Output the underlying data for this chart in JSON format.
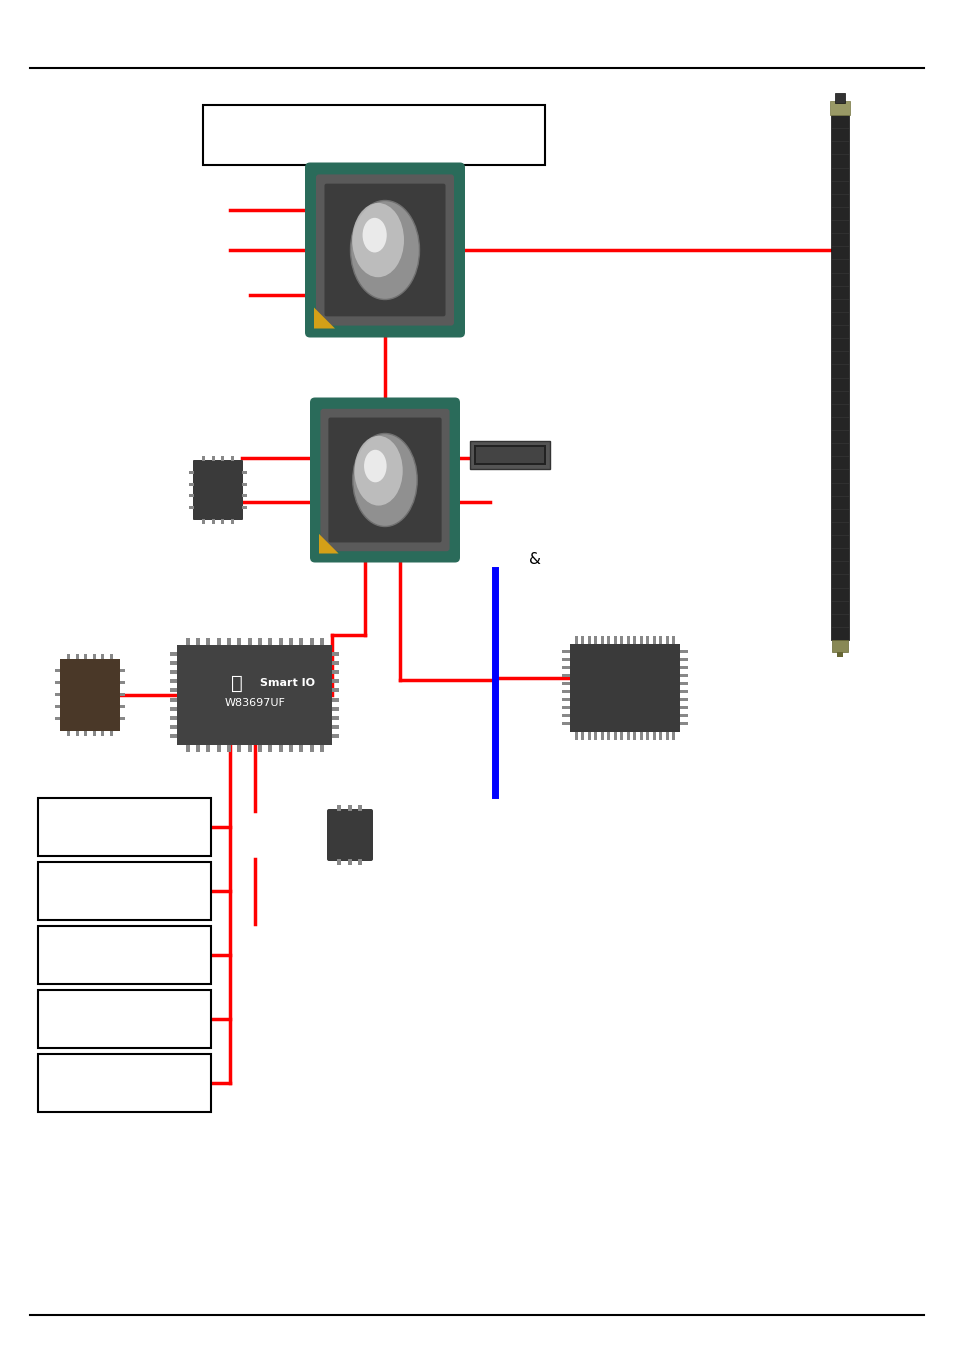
{
  "bg_color": "#ffffff",
  "line_color": "#000000",
  "red": "#ff0000",
  "blue": "#0000ff",
  "teal": "#2a6b5a",
  "dark_body": "#3c3c3c",
  "dark_chip": "#3a3a3a",
  "pin_color": "#888888",
  "lens_gray": "#a0a0a0",
  "lens_light": "#d8d8d8",
  "yellow_dot": "#d4a017",
  "sio_bg": "#424242",
  "lqfp_bg": "#4a3828",
  "box_bg": "#ffffff",
  "box_border": "#000000"
}
